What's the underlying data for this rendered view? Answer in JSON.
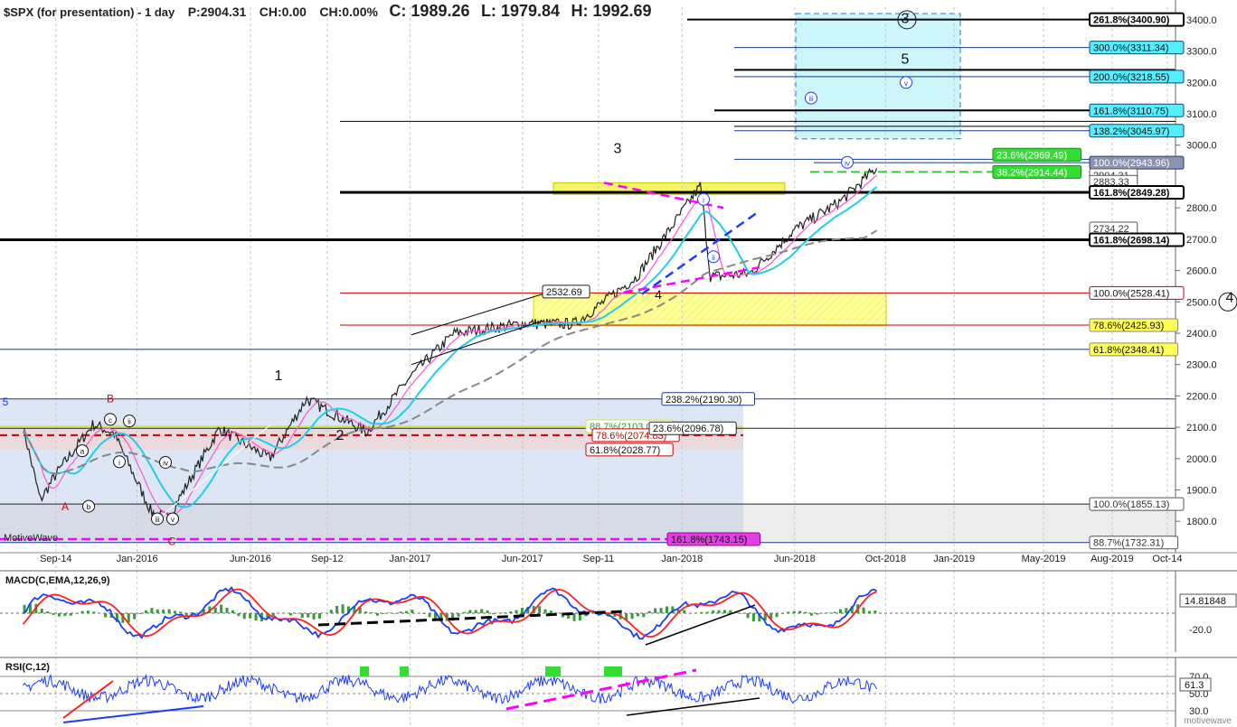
{
  "header": {
    "symbol": "$SPX (for presentation) - 1 day",
    "price": "P:2904.31",
    "change": "CH:0.00",
    "change_pct": "CH:0.00%",
    "close": "C: 1989.26",
    "low": "L: 1979.84",
    "high": "H: 1992.69"
  },
  "watermark": "motivewave",
  "left_label": "MotiveWave",
  "colors": {
    "price_up": "#2a7d2a",
    "price_down": "#222222",
    "ma_fast": "#ff55cc",
    "ma_mid": "#22ccee",
    "ma_slow": "#888888",
    "macd": "#1a3cff",
    "signal": "#ff2020",
    "hist": "#3a9a3a",
    "rsi": "#1a3cff",
    "rsi_fill": "#33dd33",
    "magenta": "#ff00ff"
  },
  "chart_data": [
    {
      "type": "line",
      "title": "$SPX (for presentation) - 1 day",
      "x_tick_labels": [
        "Sep-14",
        "Jan-2016",
        "Jun-2016",
        "Sep-12",
        "Jan-2017",
        "Jun-2017",
        "Sep-11",
        "Jan-2018",
        "Jun-2018",
        "Oct-2018",
        "Jan-2019",
        "May-2019",
        "Aug-2019",
        "Oct-14"
      ],
      "y_ticks": [
        1800,
        1900,
        2000,
        2100,
        2200,
        2300,
        2400,
        2500,
        2600,
        2700,
        2800,
        3000,
        3100,
        3200,
        3300,
        3400
      ],
      "ylim": [
        1720,
        3440
      ],
      "series": [
        {
          "values_approx": [
            [
              "2015-08-01",
              2100
            ],
            [
              "2015-08-24",
              1867
            ],
            [
              "2015-09-14",
              1950
            ],
            [
              "2015-11-03",
              2110
            ],
            [
              "2015-12-01",
              2080
            ],
            [
              "2016-01-20",
              1830
            ],
            [
              "2016-02-11",
              1810
            ],
            [
              "2016-04-20",
              2095
            ],
            [
              "2016-06-27",
              2000
            ],
            [
              "2016-08-15",
              2190
            ],
            [
              "2016-11-04",
              2085
            ],
            [
              "2017-01-01",
              2260
            ],
            [
              "2017-03-01",
              2400
            ],
            [
              "2017-06-01",
              2430
            ],
            [
              "2017-08-10",
              2430
            ],
            [
              "2017-11-01",
              2580
            ],
            [
              "2018-01-26",
              2872
            ],
            [
              "2018-02-08",
              2580
            ],
            [
              "2018-04-02",
              2590
            ],
            [
              "2018-06-01",
              2730
            ],
            [
              "2018-08-01",
              2820
            ],
            [
              "2018-09-20",
              2930
            ]
          ]
        }
      ],
      "price_axis_labels": [
        {
          "text": "261.8%(3400.90)",
          "value": 3400.9,
          "style": "bold-black"
        },
        {
          "text": "300.0%(3311.34)",
          "value": 3311.34,
          "style": "cyan"
        },
        {
          "text": "200.0%(3218.55)",
          "value": 3218.55,
          "style": "cyan"
        },
        {
          "text": "161.8%(3110.75)",
          "value": 3110.75,
          "style": "cyan"
        },
        {
          "text": "138.2%(3045.97)",
          "value": 3045.97,
          "style": "cyan"
        },
        {
          "text": "23.6%(2969.49)",
          "value": 2969.49,
          "style": "green"
        },
        {
          "text": "38.2%(2914.44)",
          "value": 2914.44,
          "style": "green"
        },
        {
          "text": "100.0%(2943.96)",
          "value": 2943.96,
          "style": "grey"
        },
        {
          "text": "2904.31",
          "value": 2904.31,
          "style": "plain"
        },
        {
          "text": "2883.33",
          "value": 2883.33,
          "style": "plain"
        },
        {
          "text": "2848.96",
          "value": 2848.96,
          "style": "plain"
        },
        {
          "text": "161.8%(2849.28)",
          "value": 2849.28,
          "style": "bold-black"
        },
        {
          "text": "2734.22",
          "value": 2734.22,
          "style": "plain"
        },
        {
          "text": "161.8%(2698.14)",
          "value": 2698.14,
          "style": "bold-black"
        },
        {
          "text": "100.0%(2528.41)",
          "value": 2528.41,
          "style": "red"
        },
        {
          "text": "78.6%(2425.93)",
          "value": 2425.93,
          "style": "yellow"
        },
        {
          "text": "61.8%(2348.41)",
          "value": 2348.41,
          "style": "yellow"
        },
        {
          "text": "100.0%(1855.13)",
          "value": 1855.13,
          "style": "plain"
        },
        {
          "text": "88.7%(1732.31)",
          "value": 1732.31,
          "style": "plain"
        }
      ],
      "fib_labels": [
        {
          "text": "238.2%(2190.30)",
          "value": 2190.3
        },
        {
          "text": "88.7%(2103.03)",
          "value": 2103.03
        },
        {
          "text": "78.6%(2074.83)",
          "value": 2074.83
        },
        {
          "text": "23.6%(2096.78)",
          "value": 2096.78
        },
        {
          "text": "61.8%(2028.77)",
          "value": 2028.77
        },
        {
          "text": "161.8%(1743.15)",
          "value": 1743.15
        },
        {
          "text": "2532.69",
          "value": 2532.69
        }
      ],
      "wave_labels": [
        "1",
        "2",
        "3",
        "4",
        "5",
        "A",
        "B",
        "C",
        "i",
        "ii",
        "iii",
        "iv",
        "v",
        "a",
        "b",
        "c"
      ]
    },
    {
      "type": "line",
      "title": "MACD(C,EMA,12,26,9)",
      "y_ticks": [
        -20.0
      ],
      "y_tick_labels": [
        "-20.0"
      ],
      "last_value": "14.81848"
    },
    {
      "type": "line",
      "title": "RSI(C,12)",
      "y_ticks": [
        70.0,
        50.0,
        30.0
      ],
      "y_tick_labels": [
        "70.0",
        "50.0",
        "30.0"
      ],
      "last_value": "61.3"
    }
  ]
}
